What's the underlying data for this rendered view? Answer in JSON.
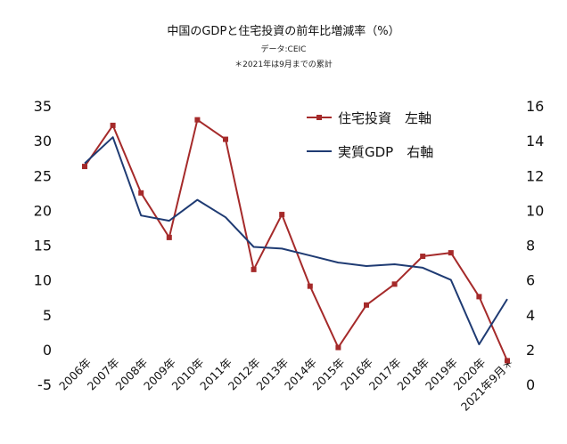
{
  "chart_data": {
    "type": "line",
    "title": "中国のGDPと住宅投資の前年比増減率（%）",
    "subtitle_lines": [
      "データ:CEIC",
      "＊2021年は9月までの累計"
    ],
    "categories": [
      "2006年",
      "2007年",
      "2008年",
      "2009年",
      "2010年",
      "2011年",
      "2012年",
      "2013年",
      "2014年",
      "2015年",
      "2016年",
      "2017年",
      "2018年",
      "2019年",
      "2020年",
      "2021年9月＊"
    ],
    "left_axis": {
      "ylim": [
        -5,
        35
      ],
      "ticks": [
        "35",
        "30",
        "25",
        "20",
        "15",
        "10",
        "5",
        "0",
        "-5"
      ]
    },
    "right_axis": {
      "ylim": [
        0,
        16
      ],
      "ticks": [
        "16",
        "14",
        "12",
        "10",
        "8",
        "6",
        "4",
        "2",
        "0"
      ]
    },
    "series": [
      {
        "name": "住宅投資　左軸",
        "axis": "left",
        "color": "#a52a2a",
        "marker": "square",
        "values": [
          26.3,
          32.2,
          22.5,
          16.1,
          33.0,
          30.2,
          11.5,
          19.4,
          9.1,
          0.3,
          6.4,
          9.4,
          13.4,
          13.9,
          7.6,
          -1.6
        ]
      },
      {
        "name": "実質GDP　右軸",
        "axis": "right",
        "color": "#1f3b73",
        "marker": "none",
        "values": [
          12.7,
          14.2,
          9.7,
          9.4,
          10.6,
          9.6,
          7.9,
          7.8,
          7.4,
          7.0,
          6.8,
          6.9,
          6.7,
          6.0,
          2.3,
          4.9
        ]
      }
    ],
    "grid": false,
    "legend_position": "top-right"
  }
}
